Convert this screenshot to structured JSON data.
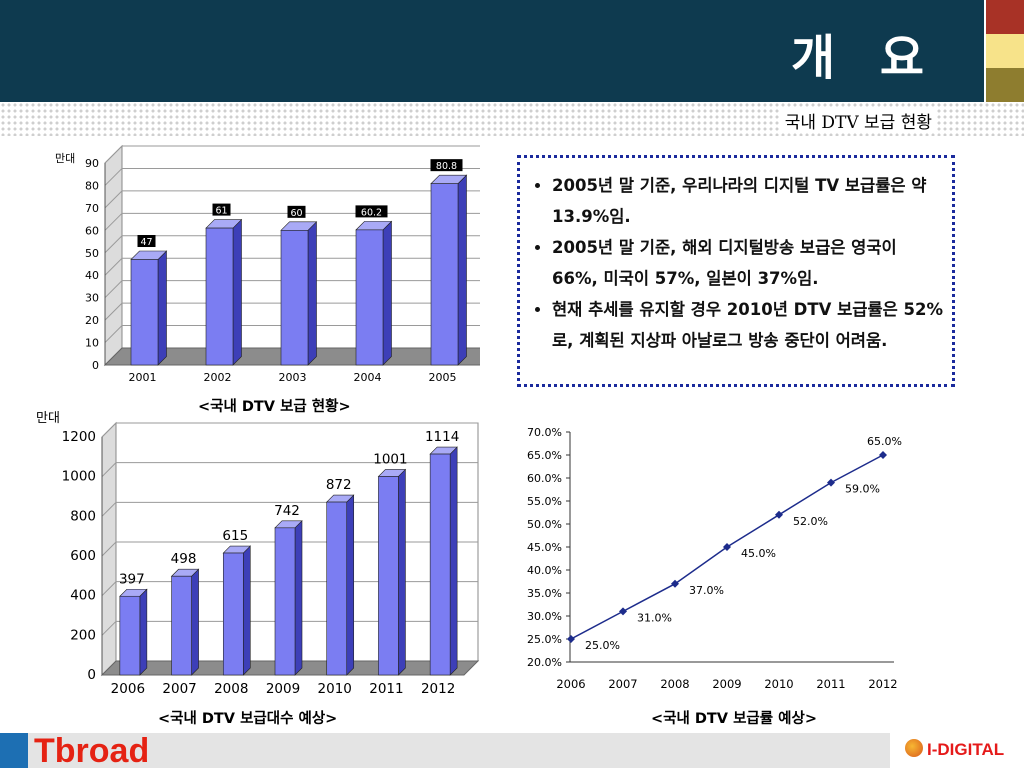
{
  "title": "개 요",
  "subtitle": "국내 DTV 보급 현황",
  "colors": {
    "header": "#0e3a4f",
    "bar_face": "#7b7df2",
    "bar_side": "#3d3fb8",
    "line": "#1d2c8c"
  },
  "bullets": [
    "2005년 말 기준, 우리나라의 디지털 TV 보급률은  약 13.9%임.",
    "2005년 말 기준, 해외 디지털방송 보급은 영국이 66%, 미국이 57%, 일본이 37%임.",
    "현재 추세를 유지할 경우 2010년 DTV 보급률은 52%로, 계획된 지상파 아날로그 방송 중단이 어려움."
  ],
  "chart_data": [
    {
      "type": "bar",
      "title": "<국내 DTV 보급 현황>",
      "unit_label": "만대",
      "categories": [
        "2001",
        "2002",
        "2003",
        "2004",
        "2005"
      ],
      "values": [
        47,
        61,
        60,
        60.2,
        80.8
      ],
      "ylim": [
        0,
        90
      ],
      "yticks": [
        0,
        10,
        20,
        30,
        40,
        50,
        60,
        70,
        80,
        90
      ],
      "grid": true
    },
    {
      "type": "bar",
      "title": "<국내 DTV 보급대수 예상>",
      "unit_label": "만대",
      "categories": [
        "2006",
        "2007",
        "2008",
        "2009",
        "2010",
        "2011",
        "2012"
      ],
      "values": [
        397,
        498,
        615,
        742,
        872,
        1001,
        1114
      ],
      "ylim": [
        0,
        1200
      ],
      "yticks": [
        0,
        200,
        400,
        600,
        800,
        1000,
        1200
      ],
      "grid": true
    },
    {
      "type": "line",
      "title": "<국내 DTV 보급률 예상>",
      "categories": [
        "2006",
        "2007",
        "2008",
        "2009",
        "2010",
        "2011",
        "2012"
      ],
      "values": [
        25.0,
        31.0,
        37.0,
        45.0,
        52.0,
        59.0,
        65.0
      ],
      "labels": [
        "25.0%",
        "31.0%",
        "37.0%",
        "45.0%",
        "52.0%",
        "59.0%",
        "65.0%"
      ],
      "ylim": [
        20,
        70
      ],
      "yticks": [
        "20.0%",
        "25.0%",
        "30.0%",
        "35.0%",
        "40.0%",
        "45.0%",
        "50.0%",
        "55.0%",
        "60.0%",
        "65.0%",
        "70.0%"
      ],
      "grid": false
    }
  ],
  "footer": {
    "brand_left": "Tbroad",
    "brand_right": "I-DIGITAL"
  }
}
